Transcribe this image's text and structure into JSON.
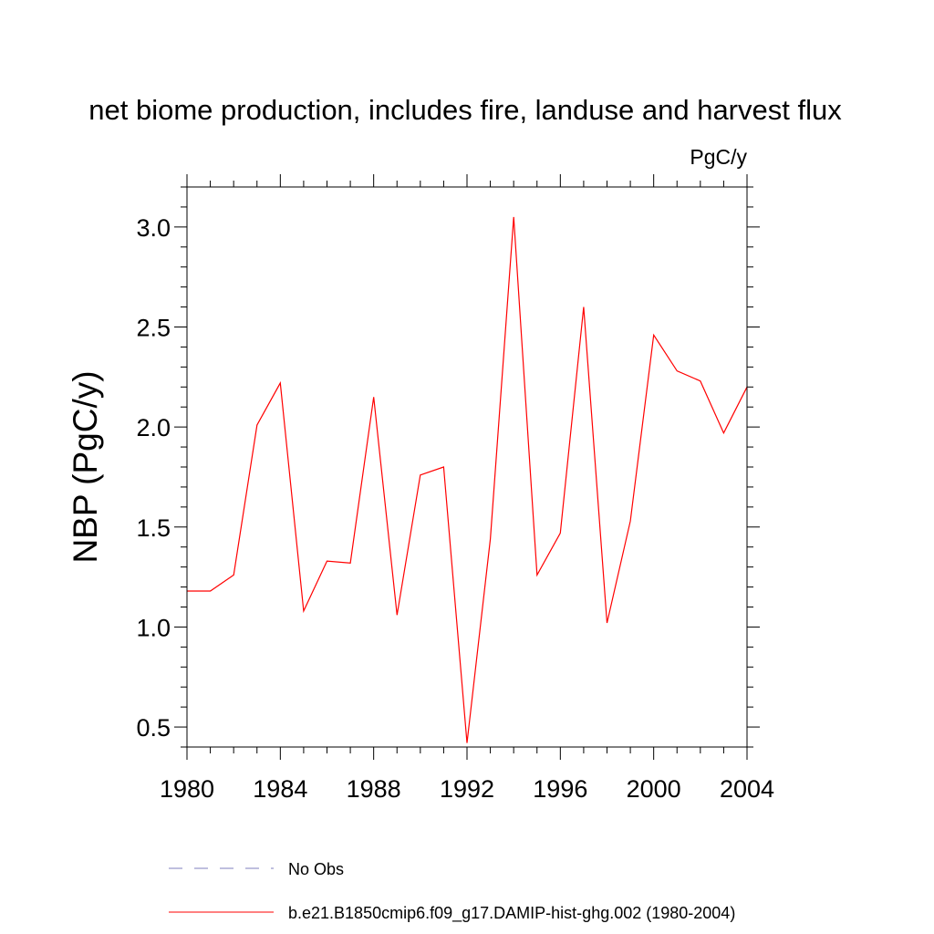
{
  "chart_data": {
    "type": "line",
    "title": "net biome production, includes fire, landuse and harvest flux",
    "units_label": "PgC/y",
    "xlabel": "",
    "ylabel": "NBP  (PgC/y)",
    "xlim": [
      1980,
      2004
    ],
    "ylim": [
      0.4,
      3.2
    ],
    "x_ticks": [
      1980,
      1984,
      1988,
      1992,
      1996,
      2000,
      2004
    ],
    "x_tick_labels": [
      "1980",
      "1984",
      "1988",
      "1992",
      "1996",
      "2000",
      "2004"
    ],
    "y_ticks": [
      0.5,
      1.0,
      1.5,
      2.0,
      2.5,
      3.0
    ],
    "y_tick_labels": [
      "0.5",
      "1.0",
      "1.5",
      "2.0",
      "2.5",
      "3.0"
    ],
    "grid": false,
    "legend_position": "bottom",
    "series": [
      {
        "name": "b.e21.B1850cmip6.f09_g17.DAMIP-hist-ghg.002 (1980-2004)",
        "color": "#ff0000",
        "dash": "solid",
        "x": [
          1980,
          1981,
          1982,
          1983,
          1984,
          1985,
          1986,
          1987,
          1988,
          1989,
          1990,
          1991,
          1992,
          1993,
          1994,
          1995,
          1996,
          1997,
          1998,
          1999,
          2000,
          2001,
          2002,
          2003,
          2004
        ],
        "y": [
          1.18,
          1.18,
          1.26,
          2.01,
          2.22,
          1.08,
          1.33,
          1.32,
          2.15,
          1.06,
          1.76,
          1.8,
          0.42,
          1.44,
          3.05,
          1.26,
          1.47,
          2.6,
          1.02,
          1.53,
          2.46,
          2.28,
          2.23,
          1.97,
          2.2
        ]
      }
    ],
    "legend": [
      {
        "label": "No Obs",
        "color": "#7f7fbf",
        "dash": "dashed"
      },
      {
        "label": "b.e21.B1850cmip6.f09_g17.DAMIP-hist-ghg.002 (1980-2004)",
        "color": "#ff0000",
        "dash": "solid"
      }
    ]
  }
}
